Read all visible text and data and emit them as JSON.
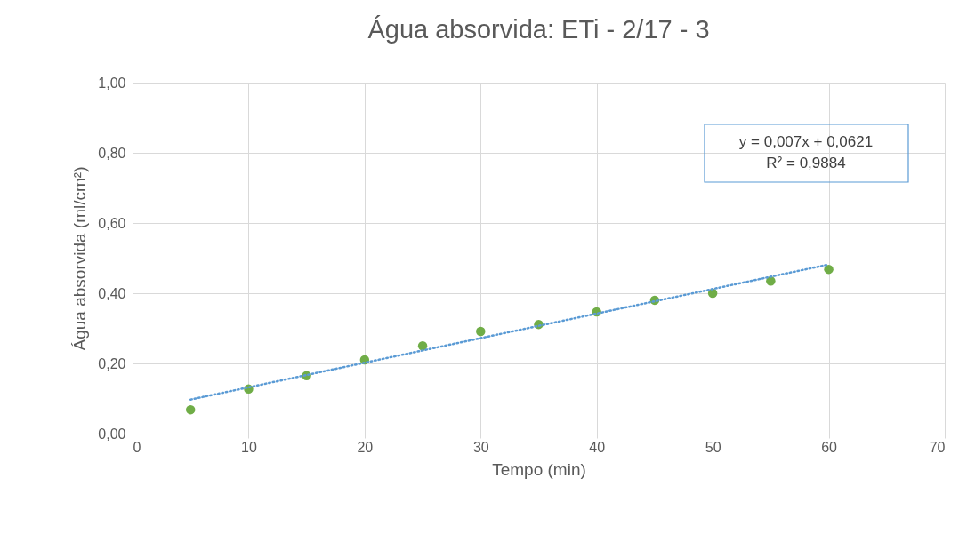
{
  "chart_data": {
    "type": "scatter",
    "title": "Água absorvida: ETi - 2/17 - 3",
    "xlabel": "Tempo (min)",
    "ylabel": "Água absorvida (ml/cm²)",
    "xlim": [
      0,
      70
    ],
    "xticks": [
      0,
      10,
      20,
      30,
      40,
      50,
      60,
      70
    ],
    "ylim": [
      0,
      1
    ],
    "yticks": [
      {
        "value": 0,
        "label": "0,00"
      },
      {
        "value": 0.2,
        "label": "0,20"
      },
      {
        "value": 0.4,
        "label": "0,40"
      },
      {
        "value": 0.6,
        "label": "0,60"
      },
      {
        "value": 0.8,
        "label": "0,80"
      },
      {
        "value": 1,
        "label": "1,00"
      }
    ],
    "grid": true,
    "marker": "circle",
    "annotations": [
      "y = 0,007x + 0,0621",
      "R² = 0,9884"
    ],
    "series": [
      {
        "color": "#70ad47",
        "x": [
          5,
          10,
          15,
          20,
          25,
          30,
          35,
          40,
          45,
          50,
          55,
          60
        ],
        "values": [
          0.068,
          0.127,
          0.165,
          0.21,
          0.25,
          0.291,
          0.311,
          0.347,
          0.38,
          0.4,
          0.435,
          0.468
        ]
      },
      {
        "type": "line",
        "color": "#5b9bd5",
        "line_style": "dotted",
        "marker": "none",
        "x": [
          5,
          60
        ],
        "values": [
          0.097,
          0.482
        ]
      }
    ]
  }
}
